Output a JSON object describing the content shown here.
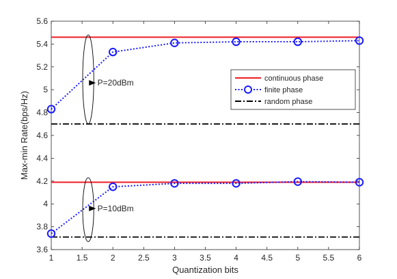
{
  "chart_data": {
    "type": "line",
    "xlabel": "Quantization bits",
    "ylabel": "Max-min Rate(bps/Hz)",
    "xlim": [
      1,
      6
    ],
    "ylim": [
      3.6,
      5.6
    ],
    "x_ticks": [
      "1",
      "1.5",
      "2",
      "2.5",
      "3",
      "3.5",
      "4",
      "4.5",
      "5",
      "5.5",
      "6"
    ],
    "y_ticks": [
      "3.6",
      "3.8",
      "4",
      "4.2",
      "4.4",
      "4.6",
      "4.8",
      "5",
      "5.2",
      "5.4",
      "5.6"
    ],
    "grid": false,
    "legend_position": "top-right",
    "series": [
      {
        "name": "continuous phase",
        "group": "P=20dBm",
        "color": "#ee1c25",
        "style": "solid",
        "marker": "none",
        "x": [
          1,
          6
        ],
        "y": [
          5.46,
          5.46
        ]
      },
      {
        "name": "finite phase",
        "group": "P=20dBm",
        "color": "#1a1aff",
        "style": "dotted",
        "marker": "circle",
        "x": [
          1,
          2,
          3,
          4,
          5,
          6
        ],
        "y": [
          4.83,
          5.33,
          5.41,
          5.42,
          5.42,
          5.43
        ]
      },
      {
        "name": "random phase",
        "group": "P=20dBm",
        "color": "#000000",
        "style": "dashdot",
        "marker": "none",
        "x": [
          1,
          6
        ],
        "y": [
          4.7,
          4.7
        ]
      },
      {
        "name": "continuous phase",
        "group": "P=10dBm",
        "color": "#ee1c25",
        "style": "solid",
        "marker": "none",
        "x": [
          1,
          6
        ],
        "y": [
          4.19,
          4.19
        ]
      },
      {
        "name": "finite phase",
        "group": "P=10dBm",
        "color": "#1a1aff",
        "style": "dotted",
        "marker": "circle",
        "x": [
          1,
          2,
          3,
          4,
          5,
          6
        ],
        "y": [
          3.74,
          4.15,
          4.18,
          4.18,
          4.195,
          4.19
        ]
      },
      {
        "name": "random phase",
        "group": "P=10dBm",
        "color": "#000000",
        "style": "dashdot",
        "marker": "none",
        "x": [
          1,
          6
        ],
        "y": [
          3.71,
          3.71
        ]
      }
    ],
    "legend": [
      {
        "label": "continuous phase",
        "color": "#ee1c25",
        "style": "solid",
        "marker": "none"
      },
      {
        "label": "finite phase",
        "color": "#1a1aff",
        "style": "dotted",
        "marker": "circle"
      },
      {
        "label": "random phase",
        "color": "#000000",
        "style": "dashdot",
        "marker": "none"
      }
    ],
    "annotations": [
      {
        "text": "P=20dBm",
        "ellipse_center": [
          1.6,
          5.09
        ],
        "ellipse_radii": [
          0.09,
          0.39
        ],
        "label_at": [
          1.75,
          5.06
        ]
      },
      {
        "text": "P=10dBm",
        "ellipse_center": [
          1.6,
          3.95
        ],
        "ellipse_radii": [
          0.09,
          0.28
        ],
        "label_at": [
          1.75,
          3.96
        ]
      }
    ]
  }
}
